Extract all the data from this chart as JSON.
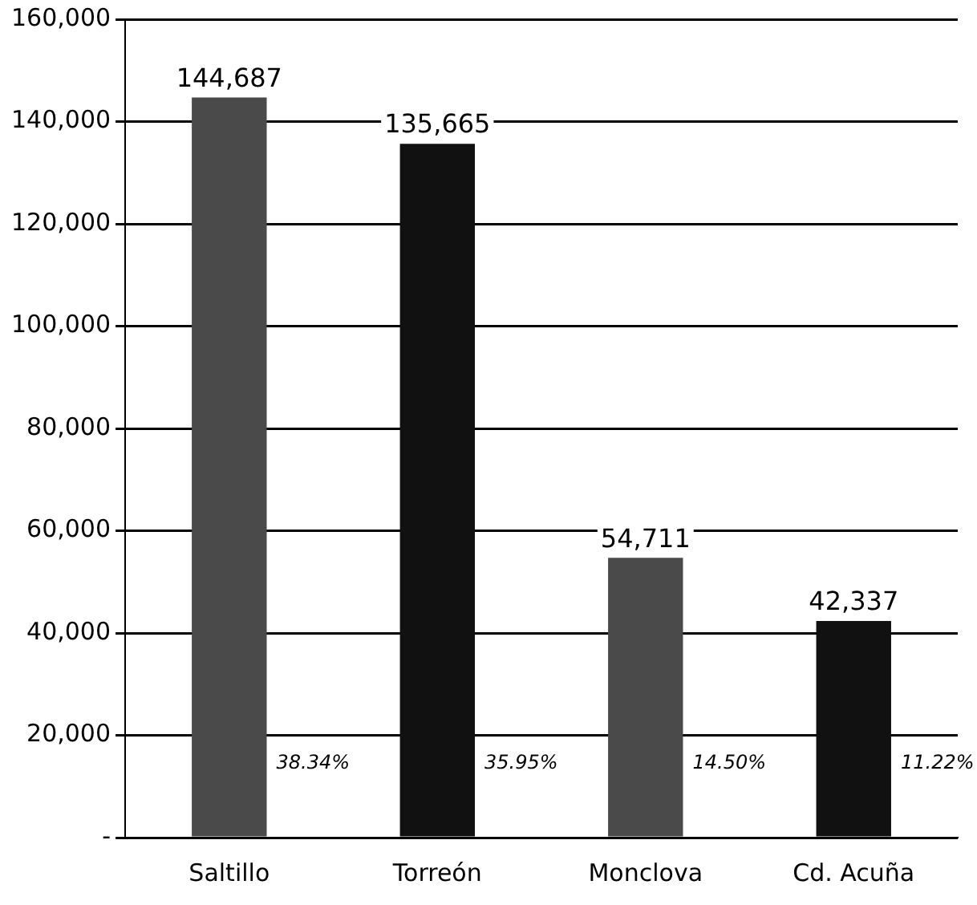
{
  "chart_data": {
    "type": "bar",
    "categories": [
      "Saltillo",
      "Torreón",
      "Monclova",
      "Cd. Acuña"
    ],
    "values": [
      144687,
      135665,
      54711,
      42337
    ],
    "colors": [
      "#4a4a4a",
      "#111111",
      "#4a4a4a",
      "#111111"
    ],
    "value_labels": [
      "144,687",
      "135,665",
      "54,711",
      "42,337"
    ],
    "ylim": [
      0,
      160000
    ],
    "yticks": [
      {
        "value": 0,
        "label": "-"
      },
      {
        "value": 20000,
        "label": "20,000"
      },
      {
        "value": 40000,
        "label": "40,000"
      },
      {
        "value": 60000,
        "label": "60,000"
      },
      {
        "value": 80000,
        "label": "80,000"
      },
      {
        "value": 100000,
        "label": "100,000"
      },
      {
        "value": 120000,
        "label": "120,000"
      },
      {
        "value": 140000,
        "label": "140,000"
      },
      {
        "value": 160000,
        "label": "160,000"
      }
    ],
    "grid": "y",
    "annotations": [
      "38.34%",
      "35.95%",
      "14.50%",
      "11.22%"
    ]
  }
}
